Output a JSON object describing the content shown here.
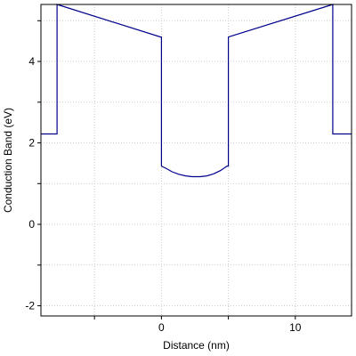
{
  "chart_data": {
    "type": "line",
    "title": "",
    "xlabel": "Distance (nm)",
    "ylabel": "Conduction Band (eV)",
    "xlim": [
      -9,
      14.2
    ],
    "ylim": [
      -2.25,
      5.4
    ],
    "xticks": [
      -5,
      0,
      5,
      10
    ],
    "xtick_labels": [
      "",
      "0",
      "",
      "10"
    ],
    "yticks": [
      -2,
      -1,
      0,
      1,
      2,
      3,
      4,
      5
    ],
    "ytick_labels": [
      "-2",
      "",
      "0",
      "",
      "2",
      "",
      "4",
      ""
    ],
    "grid": true,
    "line_color": "#00008b",
    "series": [
      {
        "x": [
          -9,
          -7.8,
          -7.8,
          -0.05,
          0,
          0,
          0.3,
          0.8,
          1.3,
          1.8,
          2.3,
          2.6,
          2.9,
          3.4,
          3.9,
          4.4,
          4.9,
          5,
          5,
          12.8,
          12.8,
          14.2
        ],
        "y": [
          2.22,
          2.22,
          5.4,
          4.6,
          4.6,
          1.43,
          1.38,
          1.29,
          1.23,
          1.19,
          1.17,
          1.17,
          1.17,
          1.19,
          1.24,
          1.32,
          1.43,
          1.43,
          4.6,
          5.4,
          2.22,
          2.22
        ]
      }
    ]
  }
}
